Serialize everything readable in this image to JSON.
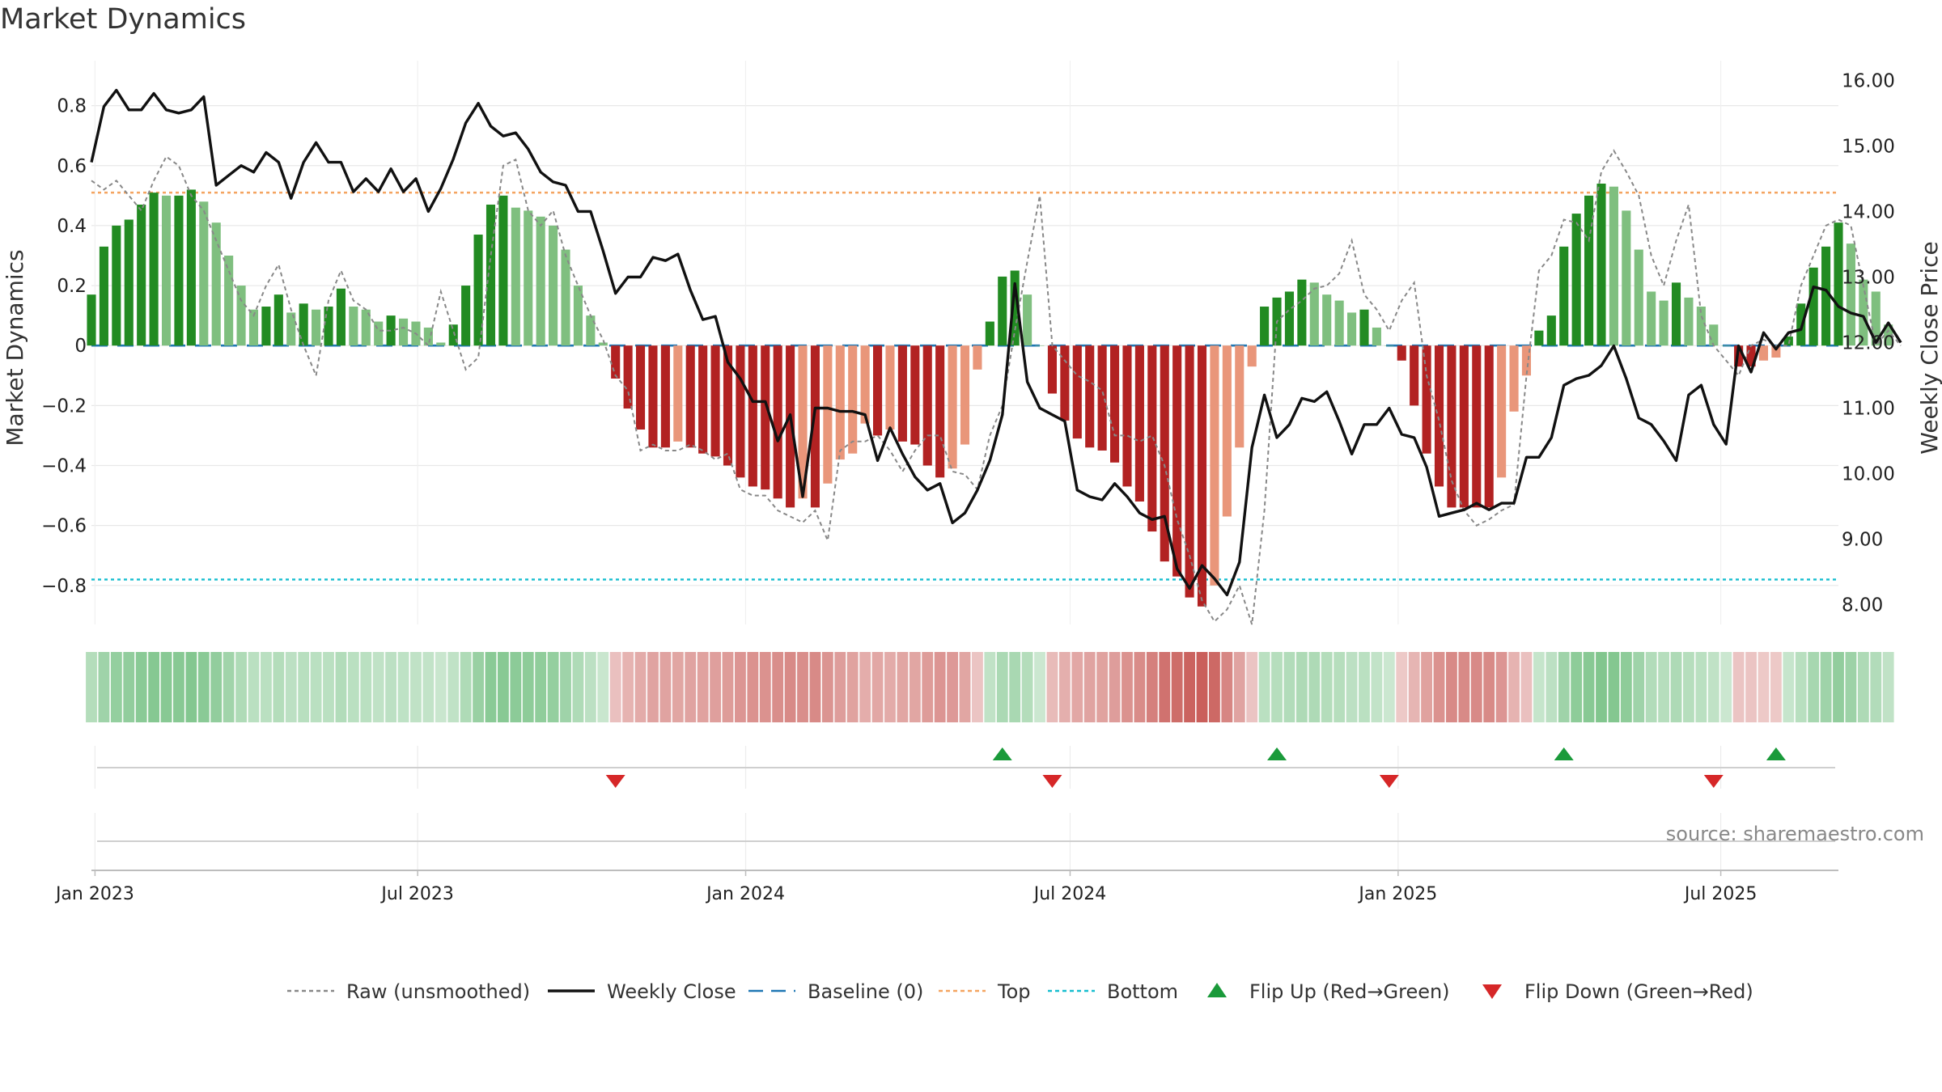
{
  "title": "Market Dynamics",
  "source_note": "source: sharemaestro.com",
  "colors": {
    "strong_green": "#228B22",
    "light_green": "#7FBF7F",
    "strong_red": "#B22222",
    "light_red": "#E9967A",
    "close_line": "#111111",
    "raw_line": "#888888",
    "baseline": "#1f77b4",
    "top": "#F4A460",
    "bottom": "#17becf",
    "flip_up": "#1a9a3a",
    "flip_down": "#d62728"
  },
  "chart_data": {
    "type": "bar+line",
    "title": "Market Dynamics",
    "ylabel": "Market Dynamics",
    "y2label": "Weekly Close Price",
    "ylim": [
      -0.93,
      0.95
    ],
    "y2lim": [
      7.7,
      16.3
    ],
    "yticks": [
      0.8,
      0.6,
      0.4,
      0.2,
      0,
      -0.2,
      -0.4,
      -0.6,
      -0.8
    ],
    "ytick_labels": [
      "0.8",
      "0.6",
      "0.4",
      "0.2",
      "0",
      "−0.2",
      "−0.4",
      "−0.6",
      "−0.8"
    ],
    "y2ticks": [
      16,
      15,
      14,
      13,
      12,
      11,
      10,
      9,
      8
    ],
    "y2tick_labels": [
      "16.00",
      "15.00",
      "14.00",
      "13.00",
      "12.00",
      "11.00",
      "10.00",
      "9.00",
      "8.00"
    ],
    "x_start": "2022-12-30",
    "x_end": "2025-09-05",
    "xticks": [
      {
        "date": "2023-01-01",
        "label": "Jan 2023"
      },
      {
        "date": "2023-07-01",
        "label": "Jul 2023"
      },
      {
        "date": "2024-01-01",
        "label": "Jan 2024"
      },
      {
        "date": "2024-07-01",
        "label": "Jul 2024"
      },
      {
        "date": "2025-01-01",
        "label": "Jan 2025"
      },
      {
        "date": "2025-07-01",
        "label": "Jul 2025"
      }
    ],
    "first_week": "2022-12-30",
    "week_days": 7,
    "momentum": [
      0.17,
      0.33,
      0.4,
      0.42,
      0.47,
      0.51,
      0.5,
      0.5,
      0.52,
      0.48,
      0.41,
      0.3,
      0.2,
      0.12,
      0.13,
      0.17,
      0.11,
      0.14,
      0.12,
      0.13,
      0.19,
      0.13,
      0.12,
      0.08,
      0.1,
      0.09,
      0.08,
      0.06,
      0.01,
      0.07,
      0.2,
      0.37,
      0.47,
      0.5,
      0.46,
      0.45,
      0.43,
      0.4,
      0.32,
      0.2,
      0.1,
      0.01,
      -0.11,
      -0.21,
      -0.28,
      -0.34,
      -0.34,
      -0.32,
      -0.34,
      -0.36,
      -0.37,
      -0.4,
      -0.44,
      -0.47,
      -0.48,
      -0.51,
      -0.54,
      -0.51,
      -0.54,
      -0.46,
      -0.38,
      -0.36,
      -0.26,
      -0.3,
      -0.28,
      -0.32,
      -0.33,
      -0.4,
      -0.44,
      -0.41,
      -0.33,
      -0.08,
      0.08,
      0.23,
      0.25,
      0.17,
      0.0,
      -0.16,
      -0.25,
      -0.31,
      -0.34,
      -0.35,
      -0.39,
      -0.47,
      -0.52,
      -0.62,
      -0.72,
      -0.77,
      -0.84,
      -0.87,
      -0.8,
      -0.57,
      -0.34,
      -0.07,
      0.13,
      0.16,
      0.18,
      0.22,
      0.21,
      0.17,
      0.15,
      0.11,
      0.12,
      0.06,
      0.0,
      -0.05,
      -0.2,
      -0.36,
      -0.47,
      -0.54,
      -0.54,
      -0.54,
      -0.54,
      -0.44,
      -0.22,
      -0.1,
      0.05,
      0.1,
      0.33,
      0.44,
      0.5,
      0.54,
      0.53,
      0.45,
      0.32,
      0.18,
      0.15,
      0.21,
      0.16,
      0.13,
      0.07,
      0.0,
      -0.07,
      -0.07,
      -0.05,
      -0.04,
      0.03,
      0.14,
      0.26,
      0.33,
      0.41,
      0.34,
      0.22,
      0.18,
      0.07
    ],
    "weekly_close": [
      14.75,
      15.6,
      15.85,
      15.55,
      15.55,
      15.8,
      15.55,
      15.5,
      15.55,
      15.75,
      14.4,
      14.55,
      14.7,
      14.6,
      14.9,
      14.75,
      14.2,
      14.75,
      15.05,
      14.75,
      14.75,
      14.3,
      14.5,
      14.3,
      14.65,
      14.3,
      14.5,
      14.0,
      14.35,
      14.8,
      15.35,
      15.65,
      15.3,
      15.15,
      15.2,
      14.95,
      14.6,
      14.45,
      14.4,
      14.0,
      14.0,
      13.4,
      12.75,
      13.0,
      13.0,
      13.3,
      13.25,
      13.35,
      12.8,
      12.35,
      12.4,
      11.7,
      11.45,
      11.1,
      11.1,
      10.5,
      10.9,
      9.65,
      11.0,
      11.0,
      10.95,
      10.95,
      10.9,
      10.2,
      10.7,
      10.3,
      9.95,
      9.75,
      9.85,
      9.25,
      9.4,
      9.75,
      10.2,
      10.9,
      12.9,
      11.4,
      11.0,
      10.9,
      10.8,
      9.75,
      9.65,
      9.6,
      9.85,
      9.65,
      9.4,
      9.3,
      9.35,
      8.55,
      8.25,
      8.6,
      8.4,
      8.15,
      8.65,
      10.4,
      11.2,
      10.55,
      10.75,
      11.15,
      11.1,
      11.25,
      10.8,
      10.3,
      10.75,
      10.75,
      11.0,
      10.6,
      10.55,
      10.1,
      9.35,
      9.4,
      9.45,
      9.55,
      9.45,
      9.55,
      9.55,
      10.25,
      10.25,
      10.55,
      11.35,
      11.45,
      11.5,
      11.65,
      11.95,
      11.45,
      10.85,
      10.75,
      10.5,
      10.2,
      11.2,
      11.35,
      10.75,
      10.45,
      11.95,
      11.55,
      12.15,
      11.9,
      12.15,
      12.2,
      12.85,
      12.8,
      12.55,
      12.45,
      12.4,
      12.0,
      12.3,
      12.0
    ],
    "raw_momentum": [
      0.55,
      0.52,
      0.55,
      0.5,
      0.45,
      0.55,
      0.63,
      0.6,
      0.5,
      0.45,
      0.35,
      0.25,
      0.15,
      0.1,
      0.2,
      0.27,
      0.12,
      0.0,
      -0.1,
      0.15,
      0.25,
      0.15,
      0.12,
      0.05,
      0.05,
      0.06,
      0.04,
      0.0,
      0.18,
      0.05,
      -0.08,
      -0.04,
      0.3,
      0.6,
      0.62,
      0.45,
      0.4,
      0.45,
      0.3,
      0.2,
      0.1,
      0.02,
      -0.1,
      -0.15,
      -0.35,
      -0.33,
      -0.35,
      -0.35,
      -0.33,
      -0.35,
      -0.38,
      -0.36,
      -0.48,
      -0.5,
      -0.5,
      -0.55,
      -0.57,
      -0.59,
      -0.55,
      -0.65,
      -0.35,
      -0.32,
      -0.32,
      -0.3,
      -0.35,
      -0.42,
      -0.35,
      -0.3,
      -0.3,
      -0.42,
      -0.43,
      -0.48,
      -0.3,
      -0.2,
      0.05,
      0.28,
      0.5,
      0.0,
      -0.05,
      -0.1,
      -0.12,
      -0.15,
      -0.3,
      -0.3,
      -0.32,
      -0.3,
      -0.4,
      -0.58,
      -0.7,
      -0.85,
      -0.92,
      -0.88,
      -0.8,
      -0.93,
      -0.55,
      0.08,
      0.12,
      0.15,
      0.19,
      0.2,
      0.24,
      0.35,
      0.17,
      0.12,
      0.05,
      0.15,
      0.21,
      -0.1,
      -0.25,
      -0.45,
      -0.55,
      -0.6,
      -0.58,
      -0.55,
      -0.53,
      -0.1,
      0.25,
      0.3,
      0.42,
      0.41,
      0.35,
      0.58,
      0.65,
      0.58,
      0.5,
      0.3,
      0.2,
      0.35,
      0.47,
      0.1,
      0.0,
      -0.05,
      -0.1,
      0.0,
      0.02,
      0.0,
      0.0,
      0.2,
      0.3,
      0.4,
      0.42,
      0.4,
      0.2,
      0.0,
      0.05,
      0.0
    ],
    "baseline": 0,
    "top_level": 0.51,
    "bottom_level": -0.78,
    "flip_up_dates": [
      "2024-05-24",
      "2024-10-25",
      "2025-04-04",
      "2025-08-01"
    ],
    "flip_down_dates": [
      "2023-10-20",
      "2024-06-21",
      "2024-12-27",
      "2025-06-27"
    ]
  },
  "legend": [
    {
      "label": "Raw (unsmoothed)",
      "kind": "dotted",
      "color": "#888888"
    },
    {
      "label": "Weekly Close",
      "kind": "line",
      "color": "#111111"
    },
    {
      "label": "Baseline (0)",
      "kind": "dashed",
      "color": "#1f77b4"
    },
    {
      "label": "Top",
      "kind": "dotted",
      "color": "#F4A460"
    },
    {
      "label": "Bottom",
      "kind": "dotted",
      "color": "#17becf"
    },
    {
      "label": "Flip Up (Red→Green)",
      "kind": "tri-up",
      "color": "#1a9a3a"
    },
    {
      "label": "Flip Down (Green→Red)",
      "kind": "tri-down",
      "color": "#d62728"
    }
  ]
}
